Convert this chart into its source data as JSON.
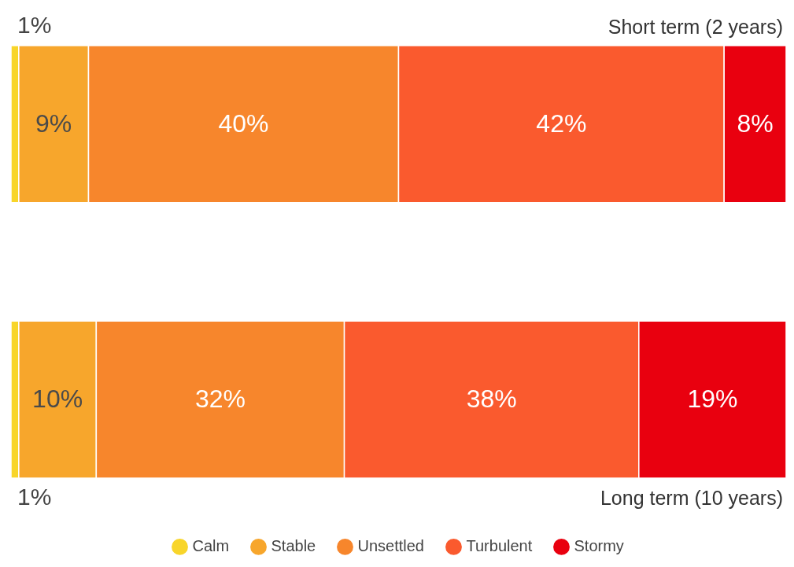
{
  "chart_data": {
    "type": "bar",
    "orientation": "horizontal",
    "stacked": true,
    "tick_labels": false,
    "legend": "bottom",
    "categories": [
      "Short term (2 years)",
      "Long term (10 years)"
    ],
    "series": [
      {
        "name": "Calm",
        "color": "#f8d52a",
        "values": [
          1,
          1
        ],
        "value_labels": [
          "1%",
          "1%"
        ]
      },
      {
        "name": "Stable",
        "color": "#f7a62c",
        "values": [
          9,
          10
        ],
        "value_labels": [
          "9%",
          "10%"
        ]
      },
      {
        "name": "Unsettled",
        "color": "#f7862c",
        "values": [
          40,
          32
        ],
        "value_labels": [
          "40%",
          "32%"
        ]
      },
      {
        "name": "Turbulent",
        "color": "#fa5a2e",
        "values": [
          42,
          38
        ],
        "value_labels": [
          "42%",
          "38%"
        ]
      },
      {
        "name": "Stormy",
        "color": "#e9000f",
        "values": [
          8,
          19
        ],
        "value_labels": [
          "8%",
          "19%"
        ]
      }
    ]
  }
}
